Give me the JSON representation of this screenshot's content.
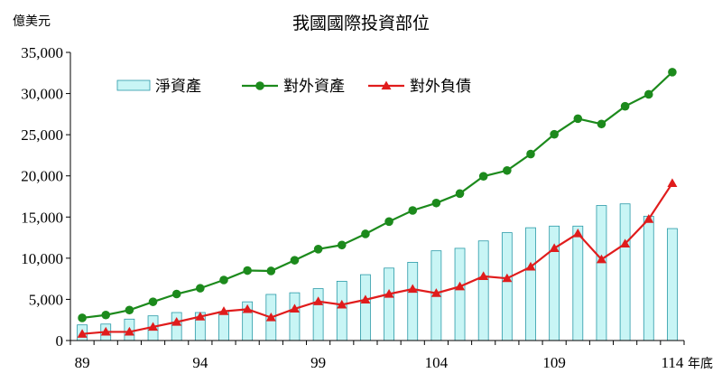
{
  "chart_data": {
    "type": "bar+line",
    "title": "我國國際投資部位",
    "ylabel": "億美元",
    "xlabel": "年底",
    "ylim": [
      0,
      35000
    ],
    "yticks": [
      "0",
      "5,000",
      "10,000",
      "15,000",
      "20,000",
      "25,000",
      "30,000",
      "35,000"
    ],
    "x": [
      89,
      90,
      91,
      92,
      93,
      94,
      95,
      96,
      97,
      98,
      99,
      100,
      101,
      102,
      103,
      104,
      105,
      106,
      107,
      108,
      109,
      110,
      111,
      112,
      113,
      114
    ],
    "xtick_labels": [
      "89",
      "94",
      "99",
      "104",
      "109",
      "114"
    ],
    "grid": false,
    "legend_position": "top-left",
    "series": [
      {
        "name": "淨資產",
        "type": "bar",
        "color": "#c8f5f5",
        "edge_color": "#2a9aa8",
        "values": [
          1900,
          2000,
          2600,
          3000,
          3400,
          3400,
          3500,
          4700,
          5600,
          5800,
          6300,
          7200,
          8000,
          8800,
          9500,
          10900,
          11200,
          12100,
          13100,
          13700,
          13900,
          13900,
          16400,
          16600,
          15100,
          13600
        ]
      },
      {
        "name": "對外資產",
        "type": "line",
        "marker": "circle",
        "color": "#1c8a1c",
        "values": [
          2750,
          3100,
          3700,
          4700,
          5650,
          6350,
          7350,
          8500,
          8450,
          9750,
          11100,
          11600,
          12950,
          14450,
          15800,
          16700,
          17850,
          19950,
          20650,
          22650,
          25050,
          26950,
          26300,
          28450,
          29900,
          32600
        ]
      },
      {
        "name": "對外負債",
        "type": "line",
        "marker": "triangle",
        "color": "#e01c1c",
        "values": [
          800,
          1050,
          1050,
          1650,
          2250,
          2900,
          3550,
          3800,
          2800,
          3850,
          4750,
          4350,
          4950,
          5650,
          6250,
          5750,
          6550,
          7800,
          7550,
          8950,
          11200,
          13000,
          9850,
          11750,
          14750,
          19100
        ]
      }
    ]
  }
}
